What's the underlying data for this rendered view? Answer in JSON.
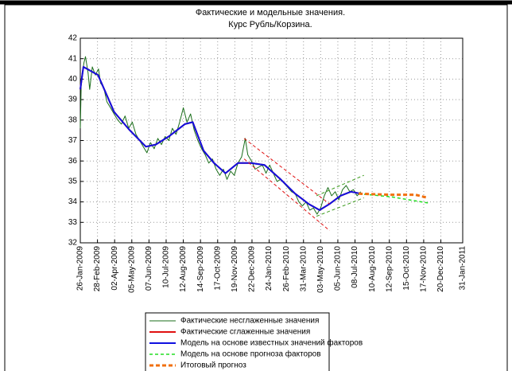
{
  "chart_data": {
    "type": "line",
    "title": [
      "Фактические и модельные значения.",
      "Курс Рубль/Корзина."
    ],
    "ylim": [
      32,
      42
    ],
    "yticks": [
      32,
      33,
      34,
      35,
      36,
      37,
      38,
      39,
      40,
      41,
      42
    ],
    "xlim": [
      "26-Jan-2009",
      "31-Jan-2011"
    ],
    "xticks": [
      "26-Jan-2009",
      "28-Feb-2009",
      "02-Apr-2009",
      "05-May-2009",
      "07-Jun-2009",
      "10-Jul-2009",
      "12-Aug-2009",
      "14-Sep-2009",
      "17-Oct-2009",
      "19-Nov-2009",
      "22-Dec-2009",
      "24-Jan-2010",
      "26-Feb-2010",
      "31-Mar-2010",
      "03-May-2010",
      "05-Jun-2010",
      "08-Jul-2010",
      "10-Aug-2010",
      "12-Sep-2010",
      "15-Oct-2010",
      "17-Nov-2010",
      "20-Dec-2010",
      "31-Jan-2011"
    ],
    "grid": true,
    "legend": "bottom",
    "series": [
      {
        "name": "Фактические несглаженные значения",
        "color": "#1a6e1a",
        "width": 1,
        "x": [
          "2009-01-26",
          "2009-01-28",
          "2009-02-02",
          "2009-02-05",
          "2009-02-10",
          "2009-02-13",
          "2009-02-18",
          "2009-02-24",
          "2009-03-02",
          "2009-03-06",
          "2009-03-12",
          "2009-03-18",
          "2009-03-25",
          "2009-04-01",
          "2009-04-08",
          "2009-04-15",
          "2009-04-22",
          "2009-04-29",
          "2009-05-06",
          "2009-05-13",
          "2009-05-20",
          "2009-05-27",
          "2009-06-03",
          "2009-06-10",
          "2009-06-17",
          "2009-06-24",
          "2009-07-01",
          "2009-07-08",
          "2009-07-15",
          "2009-07-22",
          "2009-07-29",
          "2009-08-05",
          "2009-08-12",
          "2009-08-19",
          "2009-08-26",
          "2009-09-02",
          "2009-09-09",
          "2009-09-16",
          "2009-09-23",
          "2009-09-30",
          "2009-10-07",
          "2009-10-14",
          "2009-10-21",
          "2009-10-28",
          "2009-11-04",
          "2009-11-11",
          "2009-11-18",
          "2009-11-25",
          "2009-12-02",
          "2009-12-09",
          "2009-12-14",
          "2009-12-21",
          "2009-12-28",
          "2010-01-11",
          "2010-01-18",
          "2010-01-25",
          "2010-02-01",
          "2010-02-08",
          "2010-02-15",
          "2010-02-22",
          "2010-03-01",
          "2010-03-08",
          "2010-03-15",
          "2010-03-22",
          "2010-03-29",
          "2010-04-05",
          "2010-04-12",
          "2010-04-19",
          "2010-04-26",
          "2010-05-03",
          "2010-05-10",
          "2010-05-17",
          "2010-05-24",
          "2010-05-31",
          "2010-06-07",
          "2010-06-14",
          "2010-06-21",
          "2010-06-28",
          "2010-07-05",
          "2010-07-12",
          "2010-07-19"
        ],
        "values": [
          37.6,
          40.0,
          40.8,
          41.1,
          40.3,
          39.5,
          40.6,
          40.2,
          40.5,
          39.8,
          39.6,
          38.9,
          38.6,
          38.3,
          38.0,
          37.8,
          38.2,
          37.6,
          37.9,
          37.3,
          37.0,
          36.7,
          36.4,
          36.9,
          36.6,
          37.1,
          36.8,
          37.2,
          37.0,
          37.6,
          37.3,
          37.9,
          38.6,
          37.9,
          38.3,
          37.5,
          37.0,
          36.6,
          36.3,
          35.9,
          36.1,
          35.6,
          35.3,
          35.6,
          35.1,
          35.5,
          35.3,
          35.9,
          36.2,
          37.1,
          36.3,
          36.0,
          35.6,
          35.8,
          35.4,
          35.8,
          35.4,
          35.0,
          35.1,
          34.9,
          34.7,
          34.5,
          34.4,
          34.0,
          33.8,
          34.0,
          33.6,
          33.7,
          33.4,
          33.7,
          34.3,
          34.7,
          34.3,
          34.5,
          34.1,
          34.6,
          34.8,
          34.5,
          34.6,
          34.3,
          34.5
        ]
      },
      {
        "name": "Фактические сглаженные значения",
        "color": "#e01010",
        "width": 2,
        "x": [
          "2009-01-26",
          "2009-02-01",
          "2009-03-01",
          "2009-04-01",
          "2009-05-01",
          "2009-06-01",
          "2009-06-20",
          "2009-07-15",
          "2009-08-15",
          "2009-08-30",
          "2009-09-20",
          "2009-10-10",
          "2009-11-01",
          "2009-11-25",
          "2009-12-20",
          "2010-01-15",
          "2010-02-15",
          "2010-03-15",
          "2010-04-10",
          "2010-05-01",
          "2010-05-20",
          "2010-06-10",
          "2010-06-30",
          "2010-07-20"
        ],
        "values": [
          39.5,
          40.6,
          40.2,
          38.4,
          37.5,
          36.7,
          36.8,
          37.2,
          37.8,
          37.9,
          36.5,
          35.9,
          35.4,
          35.9,
          35.9,
          35.8,
          35.1,
          34.4,
          33.9,
          33.6,
          33.9,
          34.3,
          34.5,
          34.4
        ]
      },
      {
        "name": "Модель на основе известных значений факторов",
        "color": "#1010e0",
        "width": 2,
        "x": [
          "2009-01-26",
          "2009-02-01",
          "2009-03-01",
          "2009-04-01",
          "2009-05-01",
          "2009-06-01",
          "2009-06-20",
          "2009-07-15",
          "2009-08-15",
          "2009-08-30",
          "2009-09-20",
          "2009-10-10",
          "2009-11-01",
          "2009-11-25",
          "2009-12-20",
          "2010-01-15",
          "2010-02-15",
          "2010-03-15",
          "2010-04-10",
          "2010-05-01",
          "2010-05-20",
          "2010-06-10",
          "2010-06-30",
          "2010-07-20"
        ],
        "values": [
          39.5,
          40.6,
          40.2,
          38.4,
          37.5,
          36.7,
          36.8,
          37.2,
          37.8,
          37.9,
          36.5,
          35.9,
          35.4,
          35.9,
          35.9,
          35.8,
          35.1,
          34.4,
          33.9,
          33.6,
          33.9,
          34.3,
          34.5,
          34.4
        ]
      },
      {
        "color": "#e01010",
        "width": 1,
        "dash": true,
        "x": [
          "2009-12-07",
          "2010-05-20"
        ],
        "values": [
          37.1,
          33.9
        ]
      },
      {
        "color": "#e01010",
        "width": 1,
        "dash": true,
        "x": [
          "2009-12-07",
          "2010-05-20"
        ],
        "values": [
          36.1,
          32.6
        ]
      },
      {
        "color": "#3a9a1a",
        "width": 1,
        "dash": true,
        "x": [
          "2010-04-25",
          "2010-07-25"
        ],
        "values": [
          34.3,
          35.3
        ]
      },
      {
        "color": "#3a9a1a",
        "width": 1,
        "dash": true,
        "x": [
          "2010-04-25",
          "2010-07-25"
        ],
        "values": [
          33.3,
          34.2
        ]
      },
      {
        "name": "Модель на основе прогноза факторов",
        "color": "#22dd22",
        "width": 1.5,
        "dash": true,
        "x": [
          "2010-07-15",
          "2010-09-15",
          "2010-11-25"
        ],
        "values": [
          34.4,
          34.25,
          33.95
        ]
      },
      {
        "name": "Итоговый прогноз",
        "color": "#f07010",
        "width": 3,
        "dash": true,
        "x": [
          "2010-07-15",
          "2010-09-15",
          "2010-11-01",
          "2010-11-25"
        ],
        "values": [
          34.4,
          34.35,
          34.35,
          34.2
        ]
      }
    ]
  }
}
